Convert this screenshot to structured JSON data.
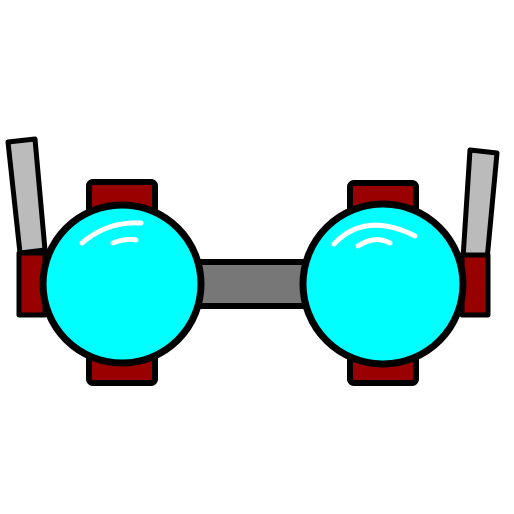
{
  "icon": {
    "name": "cyan-goggles-icon",
    "colors": {
      "background": "#ffffff",
      "outline": "#000000",
      "lens": "#00ffff",
      "highlight": "#ffffff",
      "clip": "#990000",
      "bridge": "#777777",
      "arm": "#bbbbbb"
    }
  }
}
